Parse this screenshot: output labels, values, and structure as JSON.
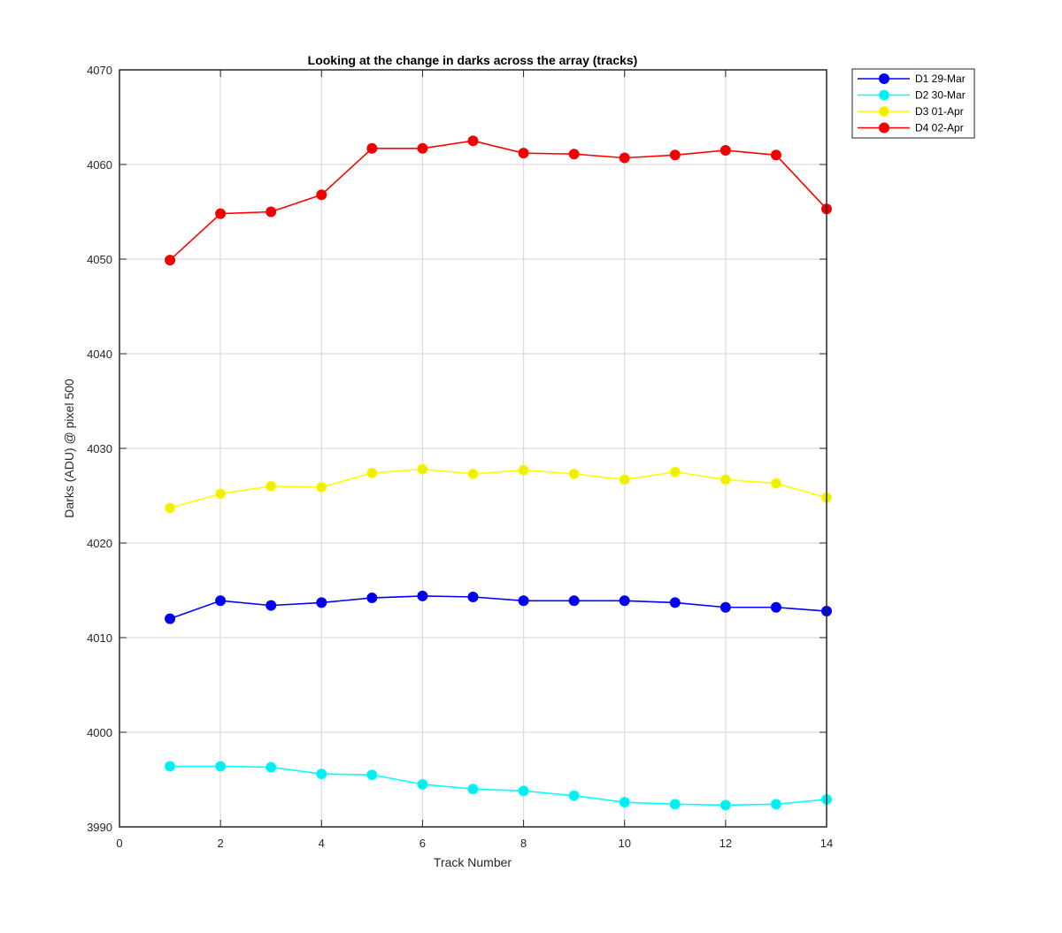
{
  "chart_data": {
    "type": "line",
    "title": "Looking at the change in darks across the array (tracks)",
    "xlabel": "Track Number",
    "ylabel": "Darks (ADU) @ pixel 500",
    "xlim": [
      0,
      14
    ],
    "ylim": [
      3990,
      4070
    ],
    "xticks": [
      0,
      2,
      4,
      6,
      8,
      10,
      12,
      14
    ],
    "yticks": [
      3990,
      4000,
      4010,
      4020,
      4030,
      4040,
      4050,
      4060,
      4070
    ],
    "grid": true,
    "legend_position": "outside-top-right",
    "x": [
      1,
      2,
      3,
      4,
      5,
      6,
      7,
      8,
      9,
      10,
      11,
      12,
      13,
      14
    ],
    "series": [
      {
        "name": "D1 29-Mar",
        "color": "#0000ff",
        "marker_color": "#0000ee",
        "values": [
          4012.0,
          4013.9,
          4013.4,
          4013.7,
          4014.2,
          4014.4,
          4014.3,
          4013.9,
          4013.9,
          4013.9,
          4013.7,
          4013.2,
          4013.2,
          4012.8
        ]
      },
      {
        "name": "D2 30-Mar",
        "color": "#00ffff",
        "marker_color": "#00eeee",
        "values": [
          3996.4,
          3996.4,
          3996.3,
          3995.6,
          3995.5,
          3994.5,
          3994.0,
          3993.8,
          3993.3,
          3992.6,
          3992.4,
          3992.3,
          3992.4,
          3992.9
        ]
      },
      {
        "name": "D3 01-Apr",
        "color": "#ffff00",
        "marker_color": "#eeee00",
        "values": [
          4023.7,
          4025.2,
          4026.0,
          4025.9,
          4027.4,
          4027.8,
          4027.3,
          4027.7,
          4027.3,
          4026.7,
          4027.5,
          4026.7,
          4026.3,
          4024.8
        ]
      },
      {
        "name": "D4 02-Apr",
        "color": "#ff0000",
        "marker_color": "#ee0000",
        "values": [
          4049.9,
          4054.8,
          4055.0,
          4056.8,
          4061.7,
          4061.7,
          4062.5,
          4061.2,
          4061.1,
          4060.7,
          4061.0,
          4061.5,
          4061.0,
          4055.3
        ]
      }
    ]
  }
}
